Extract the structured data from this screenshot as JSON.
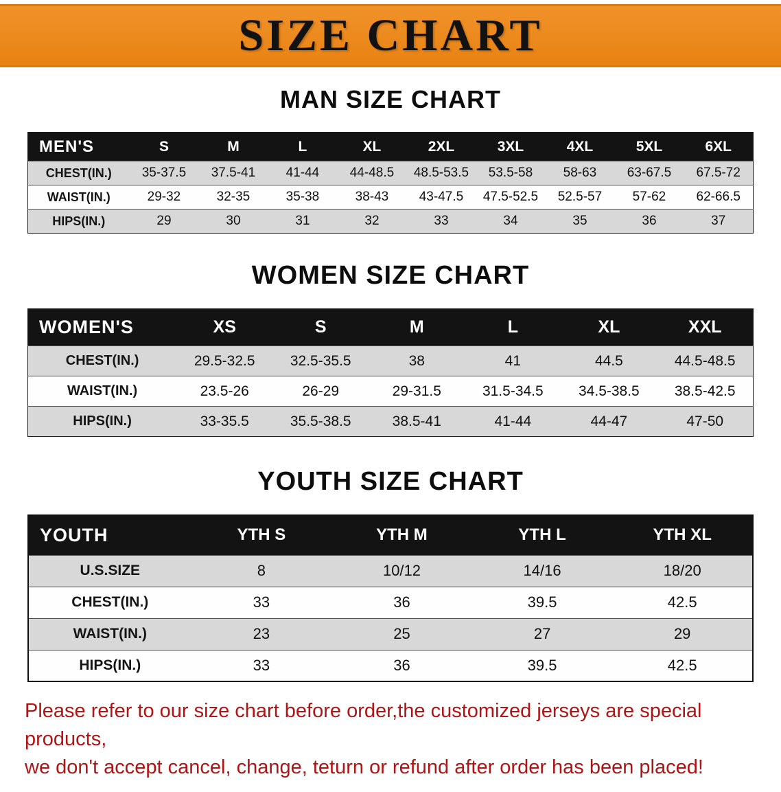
{
  "banner": {
    "title": "SIZE CHART"
  },
  "colors": {
    "banner_bg": "#EE8A1C",
    "banner_text": "#121212",
    "table_header_bg": "#131313",
    "table_header_text": "#FFFFFF",
    "row_shaded": "#D8D8D8",
    "row_plain": "#FEFEFE",
    "note_text": "#B01414"
  },
  "chart_data": [
    {
      "type": "table",
      "title": "MAN SIZE CHART",
      "header": [
        "MEN'S",
        "S",
        "M",
        "L",
        "XL",
        "2XL",
        "3XL",
        "4XL",
        "5XL",
        "6XL"
      ],
      "rows": [
        [
          "CHEST(IN.)",
          "35-37.5",
          "37.5-41",
          "41-44",
          "44-48.5",
          "48.5-53.5",
          "53.5-58",
          "58-63",
          "63-67.5",
          "67.5-72"
        ],
        [
          "WAIST(IN.)",
          "29-32",
          "32-35",
          "35-38",
          "38-43",
          "43-47.5",
          "47.5-52.5",
          "52.5-57",
          "57-62",
          "62-66.5"
        ],
        [
          "HIPS(IN.)",
          "29",
          "30",
          "31",
          "32",
          "33",
          "34",
          "35",
          "36",
          "37"
        ]
      ]
    },
    {
      "type": "table",
      "title": "WOMEN SIZE CHART",
      "header": [
        "WOMEN'S",
        "XS",
        "S",
        "M",
        "L",
        "XL",
        "XXL"
      ],
      "rows": [
        [
          "CHEST(IN.)",
          "29.5-32.5",
          "32.5-35.5",
          "38",
          "41",
          "44.5",
          "44.5-48.5"
        ],
        [
          "WAIST(IN.)",
          "23.5-26",
          "26-29",
          "29-31.5",
          "31.5-34.5",
          "34.5-38.5",
          "38.5-42.5"
        ],
        [
          "HIPS(IN.)",
          "33-35.5",
          "35.5-38.5",
          "38.5-41",
          "41-44",
          "44-47",
          "47-50"
        ]
      ]
    },
    {
      "type": "table",
      "title": "YOUTH SIZE CHART",
      "header": [
        "YOUTH",
        "YTH S",
        "YTH M",
        "YTH L",
        "YTH XL"
      ],
      "rows": [
        [
          "U.S.SIZE",
          "8",
          "10/12",
          "14/16",
          "18/20"
        ],
        [
          "CHEST(IN.)",
          "33",
          "36",
          "39.5",
          "42.5"
        ],
        [
          "WAIST(IN.)",
          "23",
          "25",
          "27",
          "29"
        ],
        [
          "HIPS(IN.)",
          "33",
          "36",
          "39.5",
          "42.5"
        ]
      ]
    }
  ],
  "footer": {
    "line1": "Please refer to our size chart before order,the customized jerseys are special products,",
    "line2": "we don't accept cancel, change, teturn or refund after order has been placed!"
  }
}
